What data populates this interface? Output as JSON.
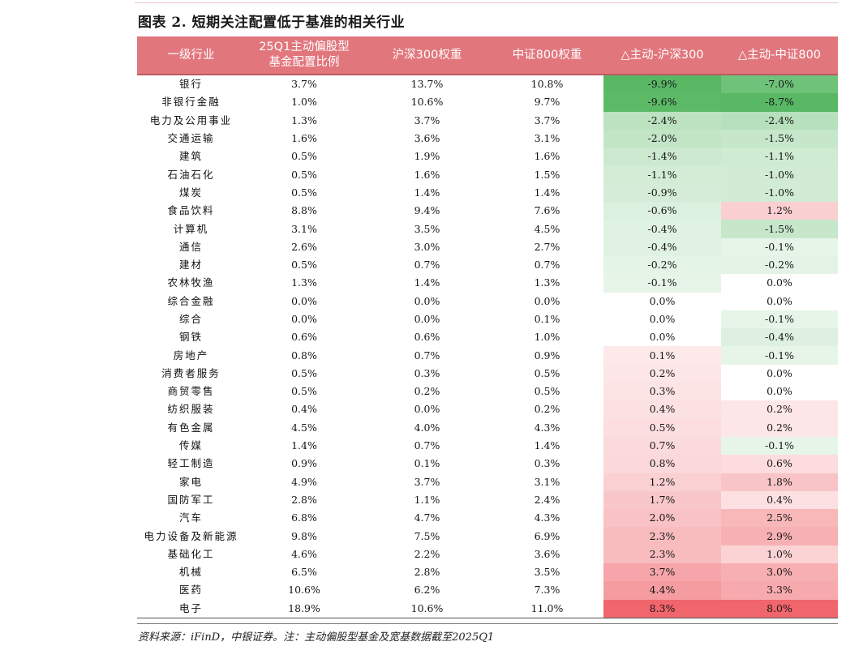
{
  "title": "图表 2. 短期关注配置低于基准的相关行业",
  "source": "资料来源：iFinD，中银证券。注：主动偏股型基金及宽基数据截至2025Q1",
  "table": {
    "headers": [
      "一级行业",
      "25Q1主动偏股型\n基金配置比例",
      "沪深300权重",
      "中证800权重",
      "△主动-沪深300",
      "△主动-中证800"
    ],
    "rows": [
      {
        "industry": "银行",
        "active": "3.7%",
        "hs300": "13.7%",
        "zz800": "10.8%",
        "d300": "-9.9%",
        "d800": "-7.0%"
      },
      {
        "industry": "非银行金融",
        "active": "1.0%",
        "hs300": "10.6%",
        "zz800": "9.7%",
        "d300": "-9.6%",
        "d800": "-8.7%"
      },
      {
        "industry": "电力及公用事业",
        "active": "1.3%",
        "hs300": "3.7%",
        "zz800": "3.7%",
        "d300": "-2.4%",
        "d800": "-2.4%"
      },
      {
        "industry": "交通运输",
        "active": "1.6%",
        "hs300": "3.6%",
        "zz800": "3.1%",
        "d300": "-2.0%",
        "d800": "-1.5%"
      },
      {
        "industry": "建筑",
        "active": "0.5%",
        "hs300": "1.9%",
        "zz800": "1.6%",
        "d300": "-1.4%",
        "d800": "-1.1%"
      },
      {
        "industry": "石油石化",
        "active": "0.5%",
        "hs300": "1.6%",
        "zz800": "1.5%",
        "d300": "-1.1%",
        "d800": "-1.0%"
      },
      {
        "industry": "煤炭",
        "active": "0.5%",
        "hs300": "1.4%",
        "zz800": "1.4%",
        "d300": "-0.9%",
        "d800": "-1.0%"
      },
      {
        "industry": "食品饮料",
        "active": "8.8%",
        "hs300": "9.4%",
        "zz800": "7.6%",
        "d300": "-0.6%",
        "d800": "1.2%"
      },
      {
        "industry": "计算机",
        "active": "3.1%",
        "hs300": "3.5%",
        "zz800": "4.5%",
        "d300": "-0.4%",
        "d800": "-1.5%"
      },
      {
        "industry": "通信",
        "active": "2.6%",
        "hs300": "3.0%",
        "zz800": "2.7%",
        "d300": "-0.4%",
        "d800": "-0.1%"
      },
      {
        "industry": "建材",
        "active": "0.5%",
        "hs300": "0.7%",
        "zz800": "0.7%",
        "d300": "-0.2%",
        "d800": "-0.2%"
      },
      {
        "industry": "农林牧渔",
        "active": "1.3%",
        "hs300": "1.4%",
        "zz800": "1.3%",
        "d300": "-0.1%",
        "d800": "0.0%"
      },
      {
        "industry": "综合金融",
        "active": "0.0%",
        "hs300": "0.0%",
        "zz800": "0.0%",
        "d300": "0.0%",
        "d800": "0.0%"
      },
      {
        "industry": "综合",
        "active": "0.0%",
        "hs300": "0.0%",
        "zz800": "0.1%",
        "d300": "0.0%",
        "d800": "-0.1%"
      },
      {
        "industry": "钢铁",
        "active": "0.6%",
        "hs300": "0.6%",
        "zz800": "1.0%",
        "d300": "0.0%",
        "d800": "-0.4%"
      },
      {
        "industry": "房地产",
        "active": "0.8%",
        "hs300": "0.7%",
        "zz800": "0.9%",
        "d300": "0.1%",
        "d800": "-0.1%"
      },
      {
        "industry": "消费者服务",
        "active": "0.5%",
        "hs300": "0.3%",
        "zz800": "0.5%",
        "d300": "0.2%",
        "d800": "0.0%"
      },
      {
        "industry": "商贸零售",
        "active": "0.5%",
        "hs300": "0.2%",
        "zz800": "0.5%",
        "d300": "0.3%",
        "d800": "0.0%"
      },
      {
        "industry": "纺织服装",
        "active": "0.4%",
        "hs300": "0.0%",
        "zz800": "0.2%",
        "d300": "0.4%",
        "d800": "0.2%"
      },
      {
        "industry": "有色金属",
        "active": "4.5%",
        "hs300": "4.0%",
        "zz800": "4.3%",
        "d300": "0.5%",
        "d800": "0.2%"
      },
      {
        "industry": "传媒",
        "active": "1.4%",
        "hs300": "0.7%",
        "zz800": "1.4%",
        "d300": "0.7%",
        "d800": "-0.1%"
      },
      {
        "industry": "轻工制造",
        "active": "0.9%",
        "hs300": "0.1%",
        "zz800": "0.3%",
        "d300": "0.8%",
        "d800": "0.6%"
      },
      {
        "industry": "家电",
        "active": "4.9%",
        "hs300": "3.7%",
        "zz800": "3.1%",
        "d300": "1.2%",
        "d800": "1.8%"
      },
      {
        "industry": "国防军工",
        "active": "2.8%",
        "hs300": "1.1%",
        "zz800": "2.4%",
        "d300": "1.7%",
        "d800": "0.4%"
      },
      {
        "industry": "汽车",
        "active": "6.8%",
        "hs300": "4.7%",
        "zz800": "4.3%",
        "d300": "2.0%",
        "d800": "2.5%"
      },
      {
        "industry": "电力设备及新能源",
        "active": "9.8%",
        "hs300": "7.5%",
        "zz800": "6.9%",
        "d300": "2.3%",
        "d800": "2.9%"
      },
      {
        "industry": "基础化工",
        "active": "4.6%",
        "hs300": "2.2%",
        "zz800": "3.6%",
        "d300": "2.3%",
        "d800": "1.0%"
      },
      {
        "industry": "机械",
        "active": "6.5%",
        "hs300": "2.8%",
        "zz800": "3.5%",
        "d300": "3.7%",
        "d800": "3.0%"
      },
      {
        "industry": "医药",
        "active": "10.6%",
        "hs300": "6.2%",
        "zz800": "7.3%",
        "d300": "4.4%",
        "d800": "3.3%"
      },
      {
        "industry": "电子",
        "active": "18.9%",
        "hs300": "10.6%",
        "zz800": "11.0%",
        "d300": "8.3%",
        "d800": "8.0%"
      }
    ]
  },
  "colors": {
    "header_bg": "#e2767d",
    "negative": "#58b864",
    "positive": "#f0666c",
    "neutral": "#ffffff"
  }
}
